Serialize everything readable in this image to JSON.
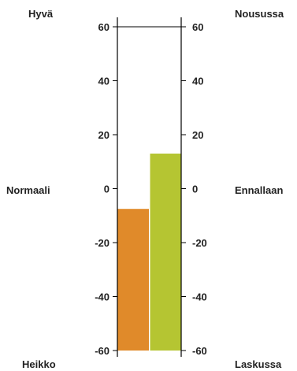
{
  "chart_data": {
    "type": "bar",
    "ylim": [
      -60,
      60
    ],
    "ticks": [
      60,
      40,
      20,
      0,
      -20,
      -40,
      -60
    ],
    "tick_labels": [
      "60",
      "40",
      "20",
      "0",
      "-20",
      "-40",
      "-60"
    ],
    "series": [
      {
        "values": [
          -7.5
        ],
        "color": "#e08a2a"
      },
      {
        "values": [
          13
        ],
        "color": "#b5c532"
      }
    ],
    "left_labels": {
      "top": "Hyvä",
      "middle": "Normaali",
      "bottom": "Heikko"
    },
    "right_labels": {
      "top": "Nousussa",
      "middle": "Ennallaan",
      "bottom": "Laskussa"
    },
    "grid": false
  }
}
